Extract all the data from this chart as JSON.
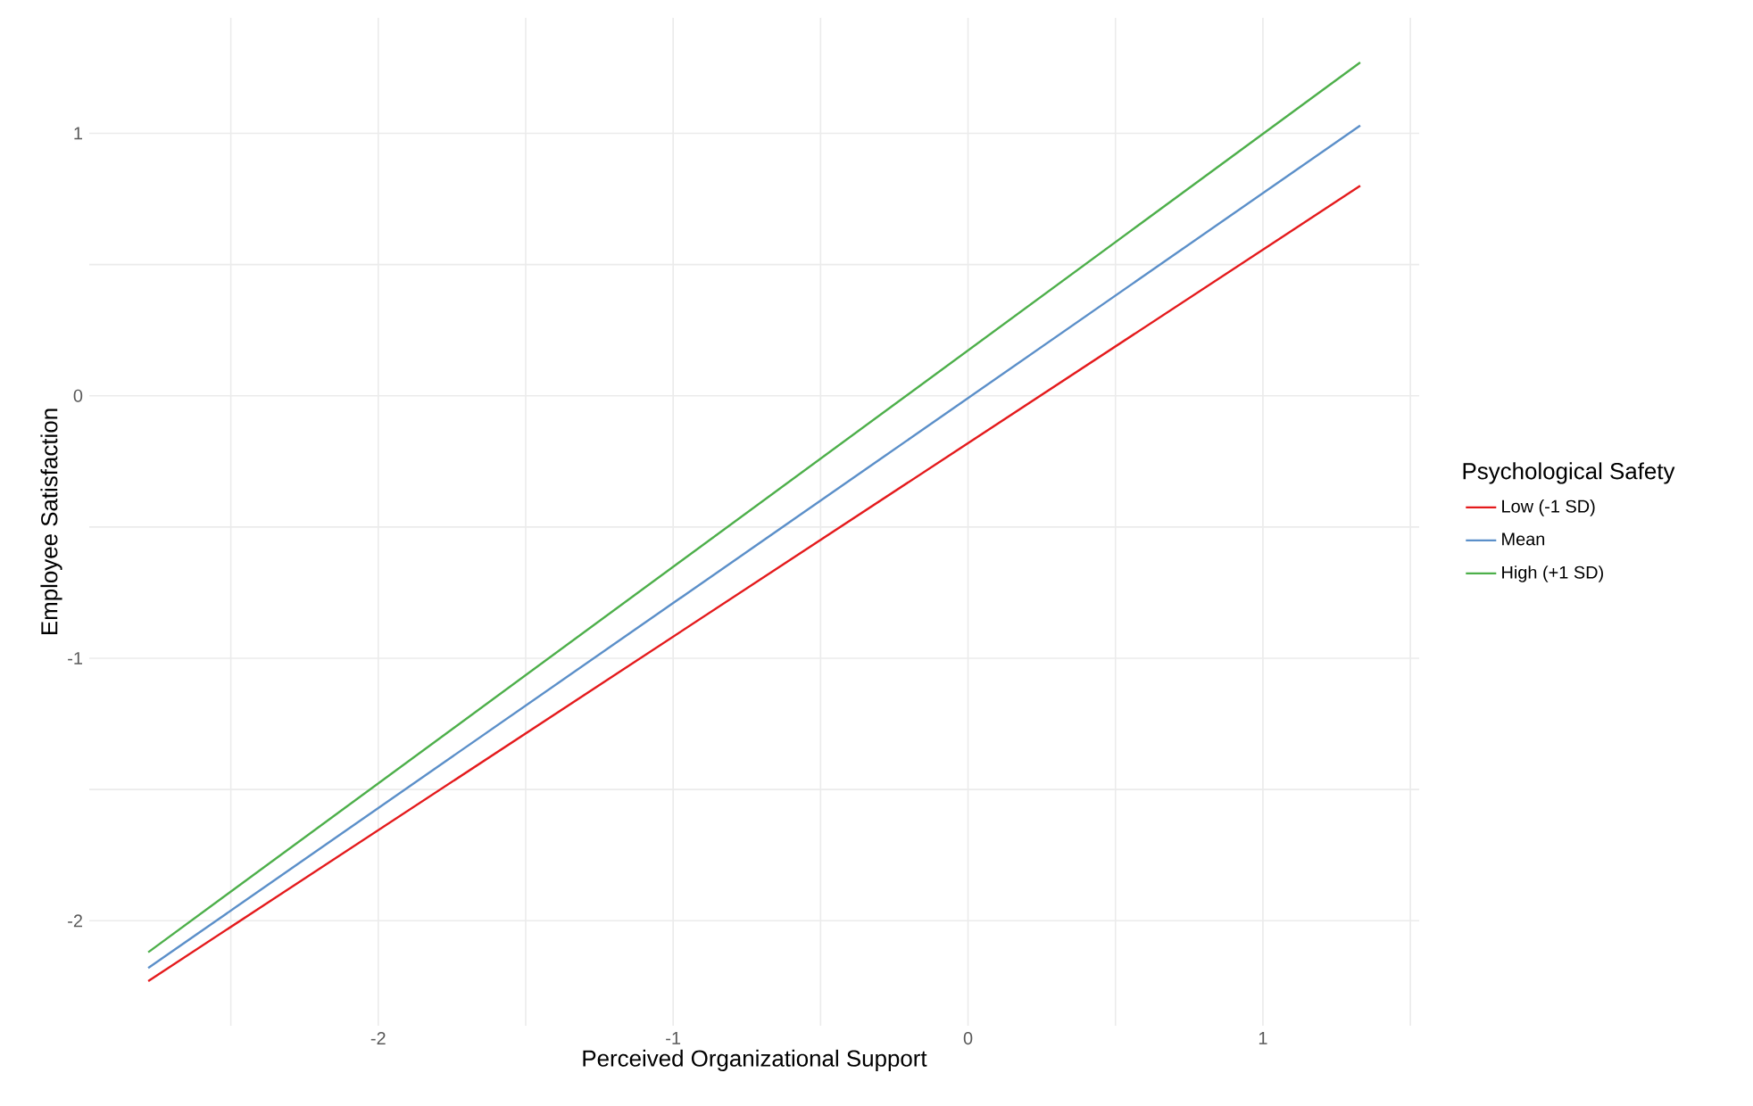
{
  "chart_data": {
    "type": "line",
    "xlabel": "Perceived Organizational Support",
    "ylabel": "Employee Satisfaction",
    "legend_title": "Psychological Safety",
    "legend": "right",
    "grid": true,
    "marker": "none",
    "line_style": "solid",
    "xlim": [
      -2.98,
      1.53
    ],
    "ylim": [
      -2.4,
      1.44
    ],
    "xticks": [
      {
        "value": -2.5,
        "label": null
      },
      -2,
      {
        "value": -1.5,
        "label": null
      },
      -1,
      {
        "value": -0.5,
        "label": null
      },
      0,
      {
        "value": 0.5,
        "label": null
      },
      1,
      {
        "value": 1.5,
        "label": null
      }
    ],
    "yticks": [
      -2,
      {
        "value": -1.5,
        "label": null
      },
      -1,
      {
        "value": -0.5,
        "label": null
      },
      0,
      {
        "value": 0.5,
        "label": null
      },
      1
    ],
    "x": [
      -2.78,
      1.33
    ],
    "series": [
      {
        "name": "Low (-1 SD)",
        "color": "#e41a1c",
        "values": [
          -2.23,
          0.8
        ]
      },
      {
        "name": "Mean",
        "color": "#5b8fc9",
        "values": [
          -2.18,
          1.03
        ]
      },
      {
        "name": "High (+1 SD)",
        "color": "#4daf4a",
        "values": [
          -2.12,
          1.27
        ]
      }
    ]
  }
}
